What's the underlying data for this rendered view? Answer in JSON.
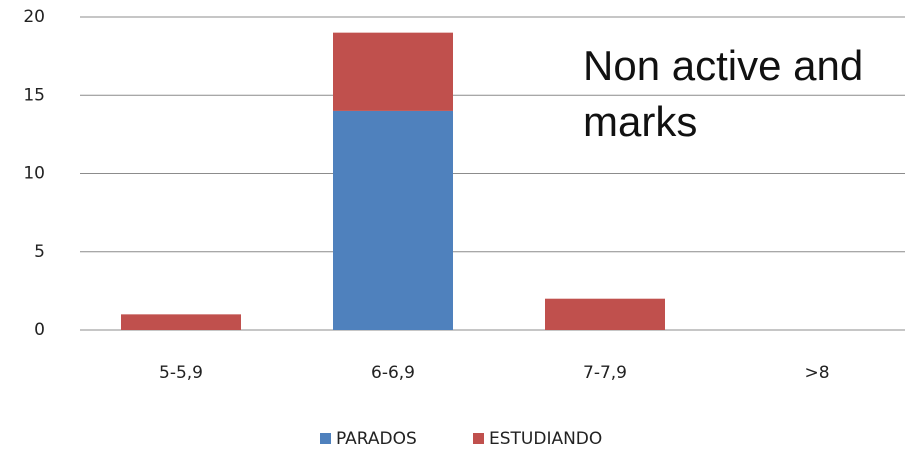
{
  "chart_data": {
    "type": "stacked_bar",
    "annotation": "Non active and marks",
    "categories": [
      "5-5,9",
      "6-6,9",
      "7-7,9",
      ">8"
    ],
    "series": [
      {
        "name": "PARADOS",
        "color": "#4f81bd",
        "values": [
          0,
          14,
          0,
          0
        ]
      },
      {
        "name": "ESTUDIANDO",
        "color": "#c0504d",
        "values": [
          1,
          5,
          2,
          0
        ]
      }
    ],
    "ylim": [
      0,
      20
    ],
    "yticks": [
      0,
      5,
      10,
      15,
      20
    ],
    "grid": true,
    "legend": "bottom"
  }
}
